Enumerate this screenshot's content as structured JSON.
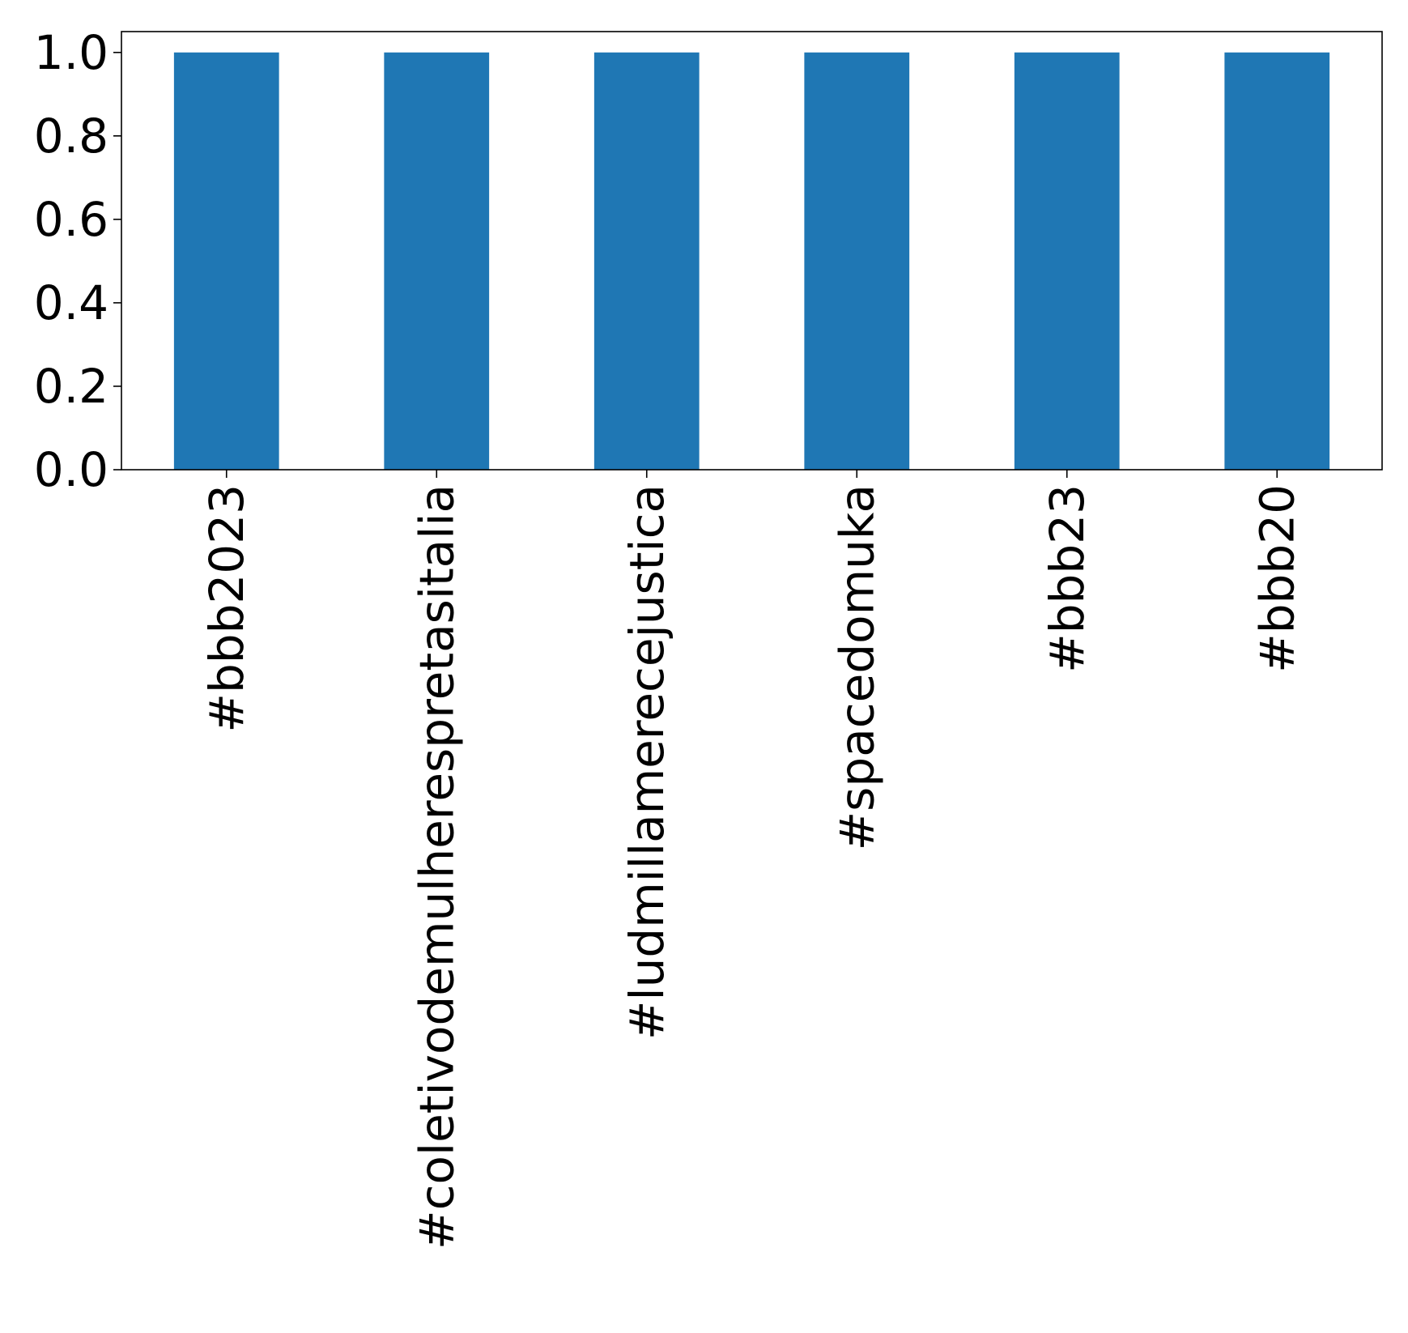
{
  "chart_data": {
    "type": "bar",
    "title": "",
    "xlabel": "",
    "ylabel": "",
    "categories": [
      "#bbb2023",
      "#coletivodemulherespretasitalia",
      "#ludmillamerecejustica",
      "#spacedomuka",
      "#bbb23",
      "#bbb20"
    ],
    "values": [
      1.0,
      1.0,
      1.0,
      1.0,
      1.0,
      1.0
    ],
    "ylim": [
      0.0,
      1.05
    ],
    "yticks": [
      "0.0",
      "0.2",
      "0.4",
      "0.6",
      "0.8",
      "1.0"
    ],
    "grid": false,
    "legend": "none",
    "bar_color": "#1f77b4"
  }
}
